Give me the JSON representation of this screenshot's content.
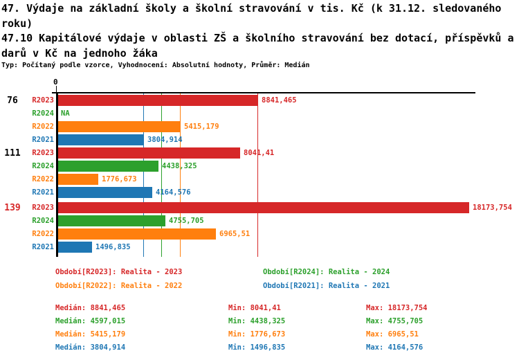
{
  "header": {
    "title1": "47. Výdaje na základní školy a školní stravování v tis. Kč (k 31.12. sledovaného roku)",
    "title2": "47.10 Kapitálové výdaje v oblasti ZŠ a školního stravování bez dotací, příspěvků a darů v Kč na jednoho žáka",
    "subtitle": "Typ: Počítaný podle vzorce, Vyhodnocení: Absolutní hodnoty, Průměr: Medián"
  },
  "colors": {
    "r2023": "#d62728",
    "r2024": "#2ca02c",
    "r2022": "#ff7f0e",
    "r2021": "#1f77b4",
    "axis": "#000000"
  },
  "chart_data": {
    "type": "bar",
    "orientation": "horizontal",
    "title": "47.10 Kapitálové výdaje v oblasti ZŠ a školního stravování bez dotací, příspěvků a darů v Kč na jednoho žáka",
    "xlabel": "",
    "ylabel": "",
    "x_axis": {
      "zero_label": "0",
      "xlim": [
        0,
        18480
      ],
      "grid": false
    },
    "series_order": [
      "R2023",
      "R2024",
      "R2022",
      "R2021"
    ],
    "categories": [
      "76",
      "111",
      "139"
    ],
    "groups": [
      {
        "label": "76",
        "label_color": "#000000",
        "bars": [
          {
            "series": "R2023",
            "value": 8841.465,
            "value_label": "8841,465",
            "color_key": "r2023"
          },
          {
            "series": "R2024",
            "value": null,
            "value_label": "NA",
            "color_key": "r2024"
          },
          {
            "series": "R2022",
            "value": 5415.179,
            "value_label": "5415,179",
            "color_key": "r2022"
          },
          {
            "series": "R2021",
            "value": 3804.914,
            "value_label": "3804,914",
            "color_key": "r2021"
          }
        ]
      },
      {
        "label": "111",
        "label_color": "#000000",
        "bars": [
          {
            "series": "R2023",
            "value": 8041.41,
            "value_label": "8041,41",
            "color_key": "r2023"
          },
          {
            "series": "R2024",
            "value": 4438.325,
            "value_label": "4438,325",
            "color_key": "r2024"
          },
          {
            "series": "R2022",
            "value": 1776.673,
            "value_label": "1776,673",
            "color_key": "r2022"
          },
          {
            "series": "R2021",
            "value": 4164.576,
            "value_label": "4164,576",
            "color_key": "r2021"
          }
        ]
      },
      {
        "label": "139",
        "label_color": "#d62728",
        "bars": [
          {
            "series": "R2023",
            "value": 18173.754,
            "value_label": "18173,754",
            "color_key": "r2023"
          },
          {
            "series": "R2024",
            "value": 4755.705,
            "value_label": "4755,705",
            "color_key": "r2024"
          },
          {
            "series": "R2022",
            "value": 6965.51,
            "value_label": "6965,51",
            "color_key": "r2022"
          },
          {
            "series": "R2021",
            "value": 1496.835,
            "value_label": "1496,835",
            "color_key": "r2021"
          }
        ]
      }
    ],
    "median_lines": [
      {
        "color_key": "r2021",
        "value": 3804.914
      },
      {
        "color_key": "r2024",
        "value": 4597.015
      },
      {
        "color_key": "r2022",
        "value": 5415.179
      },
      {
        "color_key": "r2023",
        "value": 8841.465
      }
    ]
  },
  "legend": [
    {
      "text": "Období[R2023]: Realita - 2023",
      "color_key": "r2023"
    },
    {
      "text": "Období[R2024]: Realita - 2024",
      "color_key": "r2024"
    },
    {
      "text": "Období[R2022]: Realita - 2022",
      "color_key": "r2022"
    },
    {
      "text": "Období[R2021]: Realita - 2021",
      "color_key": "r2021"
    }
  ],
  "stats": [
    {
      "color_key": "r2023",
      "median": "Medián: 8841,465",
      "min": "Min: 8041,41",
      "max": "Max: 18173,754"
    },
    {
      "color_key": "r2024",
      "median": "Medián: 4597,015",
      "min": "Min: 4438,325",
      "max": "Max: 4755,705"
    },
    {
      "color_key": "r2022",
      "median": "Medián: 5415,179",
      "min": "Min: 1776,673",
      "max": "Max: 6965,51"
    },
    {
      "color_key": "r2021",
      "median": "Medián: 3804,914",
      "min": "Min: 1496,835",
      "max": "Max: 4164,576"
    }
  ]
}
